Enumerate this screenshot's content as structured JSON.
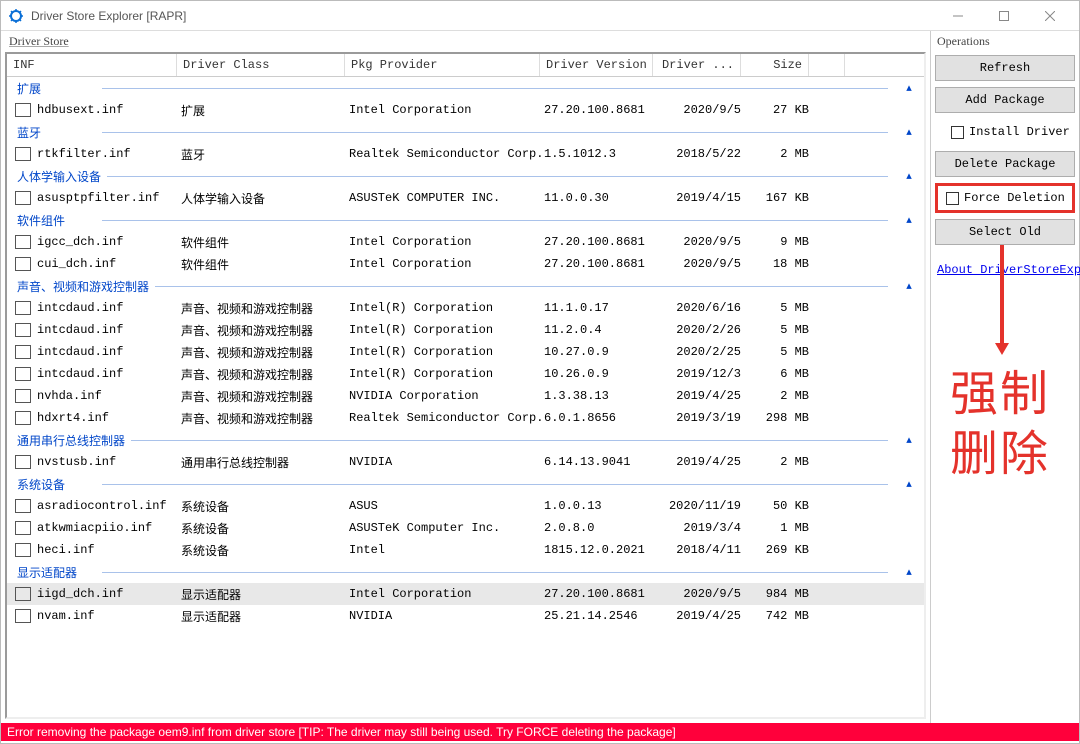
{
  "window": {
    "title": "Driver Store Explorer [RAPR]",
    "icon_color": "#0a6fd6"
  },
  "panels": {
    "left_label": "Driver Store",
    "right_label": "Operations"
  },
  "columns": {
    "inf": "INF",
    "class": "Driver Class",
    "prov": "Pkg Provider",
    "ver": "Driver Version",
    "date": "Driver ...",
    "size": "Size"
  },
  "groups": [
    {
      "name": "扩展",
      "rows": [
        {
          "inf": "hdbusext.inf",
          "class": "扩展",
          "prov": "Intel Corporation",
          "ver": "27.20.100.8681",
          "date": "2020/9/5",
          "size": "27 KB"
        }
      ]
    },
    {
      "name": "蓝牙",
      "rows": [
        {
          "inf": "rtkfilter.inf",
          "class": "蓝牙",
          "prov": "Realtek Semiconductor Corp.",
          "ver": "1.5.1012.3",
          "date": "2018/5/22",
          "size": "2 MB"
        }
      ]
    },
    {
      "name": "人体学输入设备",
      "rows": [
        {
          "inf": "asusptpfilter.inf",
          "class": "人体学输入设备",
          "prov": "ASUSTeK COMPUTER INC.",
          "ver": "11.0.0.30",
          "date": "2019/4/15",
          "size": "167 KB"
        }
      ]
    },
    {
      "name": "软件组件",
      "rows": [
        {
          "inf": "igcc_dch.inf",
          "class": "软件组件",
          "prov": "Intel Corporation",
          "ver": "27.20.100.8681",
          "date": "2020/9/5",
          "size": "9 MB"
        },
        {
          "inf": "cui_dch.inf",
          "class": "软件组件",
          "prov": "Intel Corporation",
          "ver": "27.20.100.8681",
          "date": "2020/9/5",
          "size": "18 MB"
        }
      ]
    },
    {
      "name": "声音、视频和游戏控制器",
      "rows": [
        {
          "inf": "intcdaud.inf",
          "class": "声音、视频和游戏控制器",
          "prov": "Intel(R) Corporation",
          "ver": "11.1.0.17",
          "date": "2020/6/16",
          "size": "5 MB"
        },
        {
          "inf": "intcdaud.inf",
          "class": "声音、视频和游戏控制器",
          "prov": "Intel(R) Corporation",
          "ver": "11.2.0.4",
          "date": "2020/2/26",
          "size": "5 MB"
        },
        {
          "inf": "intcdaud.inf",
          "class": "声音、视频和游戏控制器",
          "prov": "Intel(R) Corporation",
          "ver": "10.27.0.9",
          "date": "2020/2/25",
          "size": "5 MB"
        },
        {
          "inf": "intcdaud.inf",
          "class": "声音、视频和游戏控制器",
          "prov": "Intel(R) Corporation",
          "ver": "10.26.0.9",
          "date": "2019/12/3",
          "size": "6 MB"
        },
        {
          "inf": "nvhda.inf",
          "class": "声音、视频和游戏控制器",
          "prov": "NVIDIA Corporation",
          "ver": "1.3.38.13",
          "date": "2019/4/25",
          "size": "2 MB"
        },
        {
          "inf": "hdxrt4.inf",
          "class": "声音、视频和游戏控制器",
          "prov": "Realtek Semiconductor Corp.",
          "ver": "6.0.1.8656",
          "date": "2019/3/19",
          "size": "298 MB"
        }
      ]
    },
    {
      "name": "通用串行总线控制器",
      "rows": [
        {
          "inf": "nvstusb.inf",
          "class": "通用串行总线控制器",
          "prov": "NVIDIA",
          "ver": "6.14.13.9041",
          "date": "2019/4/25",
          "size": "2 MB"
        }
      ]
    },
    {
      "name": "系统设备",
      "rows": [
        {
          "inf": "asradiocontrol.inf",
          "class": "系统设备",
          "prov": "ASUS",
          "ver": "1.0.0.13",
          "date": "2020/11/19",
          "size": "50 KB"
        },
        {
          "inf": "atkwmiacpiio.inf",
          "class": "系统设备",
          "prov": "ASUSTeK Computer Inc.",
          "ver": "2.0.8.0",
          "date": "2019/3/4",
          "size": "1 MB"
        },
        {
          "inf": "heci.inf",
          "class": "系统设备",
          "prov": "Intel",
          "ver": "1815.12.0.2021",
          "date": "2018/4/11",
          "size": "269 KB"
        }
      ]
    },
    {
      "name": "显示适配器",
      "rows": [
        {
          "inf": "iigd_dch.inf",
          "class": "显示适配器",
          "prov": "Intel Corporation",
          "ver": "27.20.100.8681",
          "date": "2020/9/5",
          "size": "984 MB",
          "selected": true
        },
        {
          "inf": "nvam.inf",
          "class": "显示适配器",
          "prov": "NVIDIA",
          "ver": "25.21.14.2546",
          "date": "2019/4/25",
          "size": "742 MB"
        }
      ]
    }
  ],
  "ops": {
    "refresh": "Refresh",
    "add_package": "Add Package",
    "install_driver": "Install Driver",
    "delete_package": "Delete Package",
    "force_deletion": "Force Deletion",
    "select_old": "Select Old",
    "about_link": "About DriverStoreExpl"
  },
  "annotation": {
    "text1": "强制",
    "text2": "删除",
    "color": "#e4322b"
  },
  "status": {
    "error": "Error removing the package oem9.inf from driver store [TIP: The driver may still being used. Try FORCE deleting the package]",
    "bg": "#ff003b",
    "fg": "#ffffff"
  },
  "styling": {
    "group_color": "#0046c9",
    "group_line": "#a9c2ea",
    "selected_bg": "#e8e8e8",
    "highlight_border": "#e4322b"
  }
}
